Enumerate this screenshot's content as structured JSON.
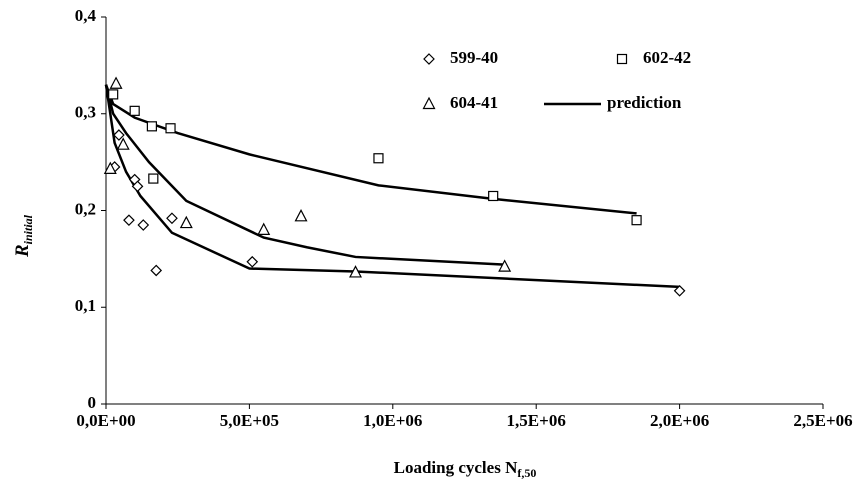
{
  "chart_data": {
    "type": "scatter",
    "x_label": "Loading cycles N",
    "x_label_sub": "f,50",
    "y_label": "R",
    "y_label_sub": "initial",
    "xlim": [
      0,
      2500000
    ],
    "xticks": [
      {
        "value": 0,
        "label": "0,0E+00"
      },
      {
        "value": 500000,
        "label": "5,0E+05"
      },
      {
        "value": 1000000,
        "label": "1,0E+06"
      },
      {
        "value": 1500000,
        "label": "1,5E+06"
      },
      {
        "value": 2000000,
        "label": "2,0E+06"
      },
      {
        "value": 2500000,
        "label": "2,5E+06"
      }
    ],
    "ylim": [
      0,
      0.4
    ],
    "yticks": [
      0,
      {
        "value": 0.1,
        "label": "0,1"
      },
      {
        "value": 0.2,
        "label": "0,2"
      },
      {
        "value": 0.3,
        "label": "0,3"
      },
      {
        "value": 0.4,
        "label": "0,4"
      }
    ],
    "color": "#000000",
    "series": [
      {
        "name": "599-40",
        "marker": "diamond",
        "x": [
          30000,
          45000,
          80000,
          100000,
          110000,
          130000,
          175000,
          230000,
          510000,
          2000000
        ],
        "values": [
          0.245,
          0.278,
          0.19,
          0.232,
          0.225,
          0.185,
          0.138,
          0.192,
          0.147,
          0.117
        ]
      },
      {
        "name": "602-42",
        "marker": "square",
        "x": [
          25000,
          100000,
          160000,
          165000,
          225000,
          950000,
          1350000,
          1850000
        ],
        "values": [
          0.32,
          0.303,
          0.287,
          0.233,
          0.285,
          0.254,
          0.215,
          0.19
        ]
      },
      {
        "name": "604-41",
        "marker": "triangle",
        "x": [
          15000,
          35000,
          60000,
          280000,
          550000,
          680000,
          870000,
          1390000
        ],
        "values": [
          0.243,
          0.331,
          0.268,
          0.187,
          0.18,
          0.194,
          0.136,
          0.142
        ]
      }
    ],
    "prediction": {
      "name": "prediction",
      "lines": [
        {
          "x": [
            0,
            25000,
            100000,
            250000,
            500000,
            950000,
            1350000,
            1850000
          ],
          "values": [
            0.33,
            0.31,
            0.296,
            0.28,
            0.258,
            0.226,
            0.212,
            0.197
          ]
        },
        {
          "x": [
            0,
            25000,
            70000,
            150000,
            280000,
            550000,
            700000,
            870000,
            1390000
          ],
          "values": [
            0.33,
            0.3,
            0.28,
            0.25,
            0.21,
            0.172,
            0.162,
            0.152,
            0.144
          ]
        },
        {
          "x": [
            0,
            30000,
            70000,
            120000,
            230000,
            500000,
            870000,
            2000000
          ],
          "values": [
            0.33,
            0.27,
            0.24,
            0.215,
            0.177,
            0.14,
            0.137,
            0.121
          ]
        }
      ]
    }
  }
}
